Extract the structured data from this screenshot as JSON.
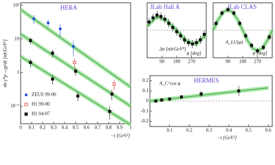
{
  "chart_data": [
    {
      "type": "scatter",
      "title": "HERA",
      "xlabel": "−t  [GeV²]",
      "ylabel": "dσ γ*p→γp/dt  [nb/GeV²]",
      "xlim": [
        0,
        1
      ],
      "ylim": [
        0.03,
        120
      ],
      "log_y": true,
      "legend": "lower left",
      "xticks": [
        0,
        0.1,
        0.2,
        0.3,
        0.4,
        0.5,
        0.6,
        0.7,
        0.8,
        0.9,
        1
      ],
      "yticks": [
        {
          "value": 100,
          "label": "10²"
        },
        10,
        1,
        {
          "value": 0.1,
          "label": "10⁻¹"
        }
      ],
      "curves": [
        {
          "color": "#3a9a3a",
          "x": [
            0,
            1
          ],
          "values": [
            75,
            0.37
          ]
        },
        {
          "color": "#3a9a3a",
          "x": [
            0,
            1
          ],
          "values": [
            14,
            0.1
          ]
        },
        {
          "color": "#3a9a3a",
          "x": [
            0,
            1
          ],
          "values": [
            3,
            0.028
          ]
        }
      ],
      "series": [
        {
          "name": "ZEUS 99-00",
          "color": "#1f4fd8",
          "marker": "circle",
          "x": [
            0.12,
            0.25,
            0.36,
            0.48
          ],
          "values": [
            40,
            30,
            20,
            6
          ],
          "errors": [
            12,
            8,
            8,
            3
          ]
        },
        {
          "name": "H1 99-00",
          "color": "#d62020",
          "marker": "open-square",
          "x": [
            0.49,
            0.85
          ],
          "values": [
            2,
            0.45
          ],
          "errors": [
            0.6,
            0.15
          ]
        },
        {
          "name": "H1  04-07",
          "color": "#111111",
          "marker": "square",
          "x": [
            0.09,
            0.29,
            0.5,
            0.83,
            0.09,
            0.29,
            0.52,
            0.81
          ],
          "values": [
            9,
            3.8,
            1.1,
            0.23,
            2,
            0.64,
            0.2,
            0.07
          ],
          "errors": [
            2,
            1,
            0.3,
            0.08,
            0.6,
            0.2,
            0.06,
            0.03
          ]
        }
      ]
    },
    {
      "type": "scatter",
      "title": "JLab Hall A",
      "xlabel": "φ  [deg]",
      "ylabel": "Δσ  [nb/GeV⁴]",
      "xlim": [
        0,
        360
      ],
      "ylim": [
        -1,
        1
      ],
      "xticks": [
        90,
        180,
        270
      ],
      "curves": [
        {
          "color": "#3a9a3a",
          "x": [
            0,
            60,
            120,
            180,
            240,
            300,
            360
          ],
          "values": [
            0.15,
            0.5,
            0.35,
            0,
            -0.4,
            -0.5,
            -0.15
          ]
        }
      ],
      "series": [
        {
          "color": "#111111",
          "marker": "square",
          "x": [
            12,
            36,
            60,
            84,
            108,
            132,
            156,
            180,
            204,
            228,
            252,
            276,
            300,
            324,
            348
          ],
          "values": [
            0.3,
            0.45,
            0.55,
            0.5,
            0.4,
            0.25,
            0.1,
            -0.05,
            -0.2,
            -0.35,
            -0.45,
            -0.5,
            -0.45,
            -0.35,
            -0.15
          ],
          "errors": [
            0.15,
            0.15,
            0.15,
            0.15,
            0.15,
            0.15,
            0.15,
            0.15,
            0.15,
            0.15,
            0.15,
            0.15,
            0.15,
            0.15,
            0.15
          ]
        }
      ]
    },
    {
      "type": "scatter",
      "title": "JLab CLAS",
      "xlabel": "φ  [deg]",
      "ylabel": "A_LU(φ)",
      "xlim": [
        0,
        360
      ],
      "ylim": [
        -0.4,
        0.4
      ],
      "xticks": [
        90,
        180,
        270
      ],
      "curves": [
        {
          "color": "#3a9a3a",
          "x": [
            0,
            30,
            60,
            90,
            120,
            150,
            180,
            210,
            240,
            270,
            300,
            330,
            360
          ],
          "values": [
            0,
            0.15,
            0.26,
            0.3,
            0.26,
            0.15,
            0,
            -0.15,
            -0.26,
            -0.3,
            -0.26,
            -0.15,
            0
          ]
        }
      ],
      "series": [
        {
          "color": "#111111",
          "marker": "square",
          "x": [
            18,
            54,
            90,
            126,
            162,
            198,
            234,
            270,
            306,
            342
          ],
          "values": [
            0.1,
            0.25,
            0.3,
            0.25,
            0.1,
            -0.08,
            -0.22,
            -0.3,
            -0.25,
            -0.1
          ],
          "errors": [
            0.04,
            0.04,
            0.04,
            0.04,
            0.04,
            0.04,
            0.04,
            0.04,
            0.04,
            0.04
          ]
        }
      ]
    },
    {
      "type": "scatter",
      "title": "HERMES",
      "xlabel": "−t  [GeV²]",
      "ylabel": "A_C^cos φ",
      "xlim": [
        0,
        0.62
      ],
      "ylim": [
        -0.25,
        0.25
      ],
      "xticks": [
        0.1,
        0.2,
        0.3,
        0.4,
        0.5,
        0.6
      ],
      "yticks": [
        -0.2,
        -0.1,
        0,
        0.1,
        0.2
      ],
      "curves": [
        {
          "color": "#3a9a3a",
          "x": [
            0,
            0.6
          ],
          "values": [
            0,
            0.13
          ]
        }
      ],
      "series": [
        {
          "color": "#111111",
          "marker": "square",
          "x": [
            0.03,
            0.06,
            0.1,
            0.16,
            0.26,
            0.45
          ],
          "values": [
            0,
            0.01,
            0.02,
            0.04,
            0.07,
            0.1
          ],
          "errors": [
            0.01,
            0.015,
            0.015,
            0.02,
            0.03,
            0.05
          ]
        }
      ]
    }
  ]
}
